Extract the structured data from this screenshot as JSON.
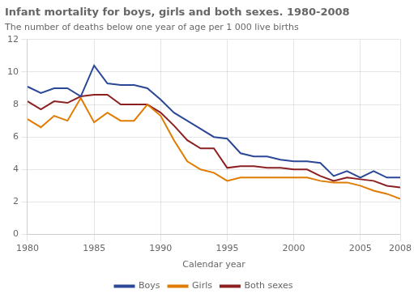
{
  "chart_data": {
    "type": "line",
    "title": "Infant mortality for boys, girls and both sexes. 1980-2008",
    "subtitle": "The number of deaths below one year of age per 1 000 live births",
    "xlabel": "Calendar year",
    "x": [
      1980,
      1981,
      1982,
      1983,
      1984,
      1985,
      1986,
      1987,
      1988,
      1989,
      1990,
      1991,
      1992,
      1993,
      1994,
      1995,
      1996,
      1997,
      1998,
      1999,
      2000,
      2001,
      2002,
      2003,
      2004,
      2005,
      2006,
      2007,
      2008
    ],
    "series": [
      {
        "name": "Boys",
        "color": "#2b4898",
        "values": [
          9.1,
          8.7,
          9.0,
          9.0,
          8.5,
          10.4,
          9.3,
          9.2,
          9.2,
          9.0,
          8.3,
          7.5,
          7.0,
          6.5,
          6.0,
          5.9,
          5.0,
          4.8,
          4.8,
          4.6,
          4.5,
          4.5,
          4.4,
          3.6,
          3.9,
          3.5,
          3.9,
          3.5,
          3.5
        ]
      },
      {
        "name": "Girls",
        "color": "#e07b00",
        "values": [
          7.1,
          6.6,
          7.3,
          7.0,
          8.4,
          6.9,
          7.5,
          7.0,
          7.0,
          8.0,
          7.3,
          5.8,
          4.5,
          4.0,
          3.8,
          3.3,
          3.5,
          3.5,
          3.5,
          3.5,
          3.5,
          3.5,
          3.3,
          3.2,
          3.2,
          3.0,
          2.7,
          2.5,
          2.2
        ]
      },
      {
        "name": "Both sexes",
        "color": "#8b2020",
        "values": [
          8.2,
          7.7,
          8.2,
          8.1,
          8.5,
          8.6,
          8.6,
          8.0,
          8.0,
          8.0,
          7.5,
          6.7,
          5.8,
          5.3,
          5.3,
          4.1,
          4.2,
          4.2,
          4.1,
          4.1,
          4.0,
          4.0,
          3.6,
          3.3,
          3.5,
          3.4,
          3.3,
          3.0,
          2.9
        ]
      }
    ],
    "xlim": [
      1980,
      2008
    ],
    "xticks": [
      1980,
      1985,
      1990,
      1995,
      2000,
      2005,
      2008
    ],
    "ylim": [
      0,
      12
    ],
    "yticks": [
      0,
      2,
      4,
      6,
      8,
      10,
      12
    ],
    "grid": true,
    "legend": "bottom"
  }
}
